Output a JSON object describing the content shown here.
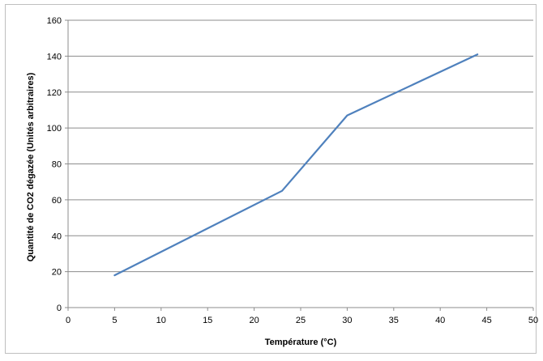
{
  "chart_data": {
    "type": "line",
    "title": "",
    "xlabel": "Température (°C)",
    "ylabel": "Quantité de CO2 dégazée (Unités arbitraires)",
    "xlim": [
      0,
      50
    ],
    "ylim": [
      0,
      160
    ],
    "xticks": [
      0,
      5,
      10,
      15,
      20,
      25,
      30,
      35,
      40,
      45,
      50
    ],
    "yticks": [
      0,
      20,
      40,
      60,
      80,
      100,
      120,
      140,
      160
    ],
    "grid": "horizontal",
    "legend": "none",
    "series": [
      {
        "color": "#4f81bd",
        "x": [
          5,
          23,
          30,
          44
        ],
        "y": [
          18,
          65,
          107,
          141
        ]
      }
    ]
  }
}
